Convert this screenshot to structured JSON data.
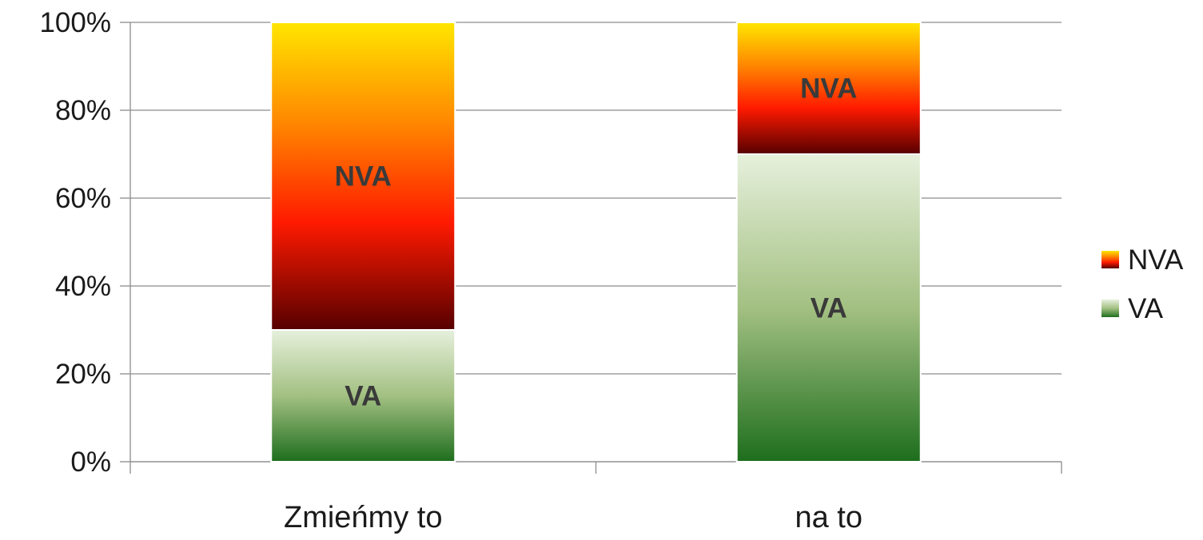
{
  "chart_data": {
    "type": "bar",
    "stacked": true,
    "categories": [
      "Zmieńmy to",
      "na to"
    ],
    "series": [
      {
        "name": "VA",
        "values": [
          30,
          70
        ],
        "color_top": "#e6f0dc",
        "color_bottom": "#1d6e1d"
      },
      {
        "name": "NVA",
        "values": [
          70,
          30
        ],
        "color_top": "#ffe600",
        "color_mid": "#ff1a00",
        "color_bottom": "#560000"
      }
    ],
    "data_labels": {
      "VA": "VA",
      "NVA": "NVA"
    },
    "ylim": [
      0,
      100
    ],
    "yticks": [
      "0%",
      "20%",
      "40%",
      "60%",
      "80%",
      "100%"
    ],
    "ytick_values": [
      0,
      20,
      40,
      60,
      80,
      100
    ],
    "grid": true,
    "legend": {
      "position": "right",
      "entries": [
        "NVA",
        "VA"
      ]
    }
  }
}
